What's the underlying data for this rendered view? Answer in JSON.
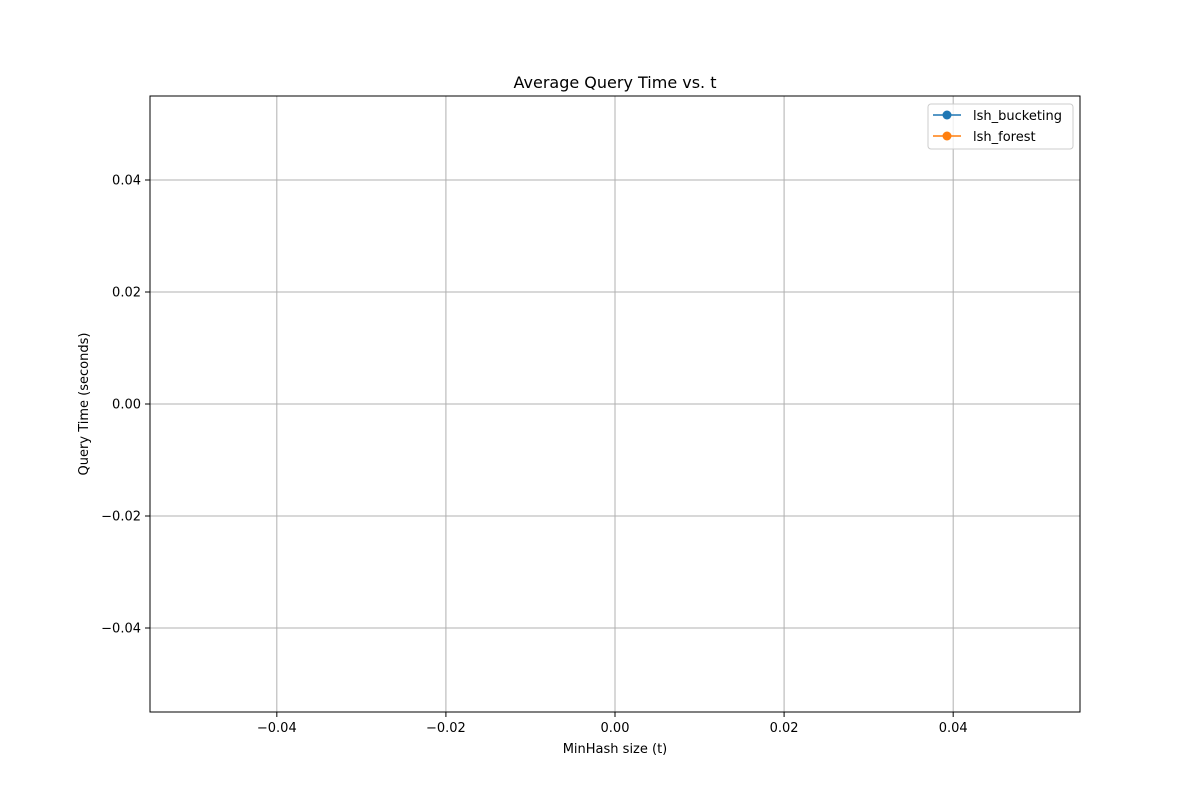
{
  "chart_data": {
    "type": "line",
    "title": "Average Query Time vs. t",
    "xlabel": "MinHash size (t)",
    "ylabel": "Query Time (seconds)",
    "xlim": [
      -0.055,
      0.055
    ],
    "ylim": [
      -0.055,
      0.055
    ],
    "xticks": [
      -0.04,
      -0.02,
      0.0,
      0.02,
      0.04
    ],
    "xtick_labels": [
      "−0.04",
      "−0.02",
      "0.00",
      "0.02",
      "0.04"
    ],
    "yticks": [
      -0.04,
      -0.02,
      0.0,
      0.02,
      0.04
    ],
    "ytick_labels": [
      "−0.04",
      "−0.02",
      "0.00",
      "0.02",
      "0.04"
    ],
    "grid": true,
    "legend_position": "top-right",
    "series": [
      {
        "name": "lsh_bucketing",
        "color": "#1f77b4",
        "marker": "circle",
        "x": [],
        "y": []
      },
      {
        "name": "lsh_forest",
        "color": "#ff7f0e",
        "marker": "circle",
        "x": [],
        "y": []
      }
    ]
  }
}
